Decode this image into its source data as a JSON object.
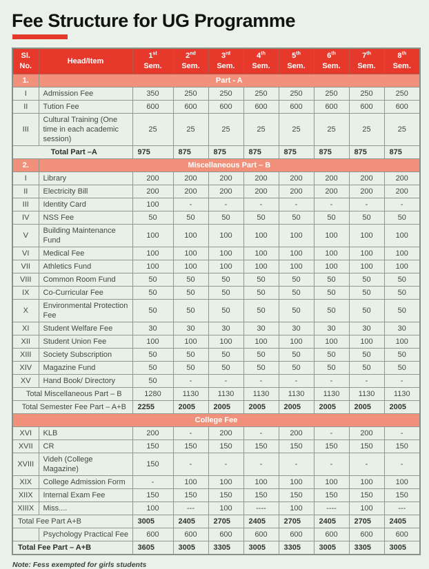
{
  "page": {
    "title": "Fee Structure for UG Programme",
    "note": "Note: Fess exempted for girls students"
  },
  "colors": {
    "header_red": "#e6392c",
    "banner_salmon": "#f2917b",
    "page_background": "#e9f1ea",
    "cell_background": "#e8f0e7",
    "cell_text": "#434842",
    "border_gray": "#8f978f",
    "header_text": "#ffffff"
  },
  "table": {
    "header": {
      "sl_lines": [
        "Sl.",
        "No."
      ],
      "item": "Head/Item",
      "sem_suffix": "Sem.",
      "sems": [
        {
          "n": "1",
          "sup": "st"
        },
        {
          "n": "2",
          "sup": "nd"
        },
        {
          "n": "3",
          "sup": "rd"
        },
        {
          "n": "4",
          "sup": "th"
        },
        {
          "n": "5",
          "sup": "th"
        },
        {
          "n": "6",
          "sup": "th"
        },
        {
          "n": "7",
          "sup": "th"
        },
        {
          "n": "8",
          "sup": "th"
        }
      ]
    },
    "rows": [
      {
        "type": "banner",
        "sl": "1.",
        "label": "Part - A"
      },
      {
        "type": "data",
        "sl": "I",
        "label": "Admission Fee",
        "values": [
          "350",
          "250",
          "250",
          "250",
          "250",
          "250",
          "250",
          "250"
        ]
      },
      {
        "type": "data",
        "sl": "II",
        "label": "Tution Fee",
        "values": [
          "600",
          "600",
          "600",
          "600",
          "600",
          "600",
          "600",
          "600"
        ]
      },
      {
        "type": "data",
        "sl": "III",
        "label": "Cultural Training (One time in each academic session)",
        "values": [
          "25",
          "25",
          "25",
          "25",
          "25",
          "25",
          "25",
          "25"
        ]
      },
      {
        "type": "total",
        "label": "Total Part –A",
        "label_bold": true,
        "label_align": "center",
        "values_bold": true,
        "values": [
          "975",
          "875",
          "875",
          "875",
          "875",
          "875",
          "875",
          "875"
        ]
      },
      {
        "type": "banner",
        "sl": "2.",
        "label": "Miscellaneous Part – B"
      },
      {
        "type": "data",
        "sl": "I",
        "label": "Library",
        "values": [
          "200",
          "200",
          "200",
          "200",
          "200",
          "200",
          "200",
          "200"
        ]
      },
      {
        "type": "data",
        "sl": "II",
        "label": "Electricity Bill",
        "values": [
          "200",
          "200",
          "200",
          "200",
          "200",
          "200",
          "200",
          "200"
        ]
      },
      {
        "type": "data",
        "sl": "III",
        "label": "Identity Card",
        "values": [
          "100",
          "-",
          "-",
          "-",
          "-",
          "-",
          "-",
          "-"
        ]
      },
      {
        "type": "data",
        "sl": "IV",
        "label": "NSS Fee",
        "values": [
          "50",
          "50",
          "50",
          "50",
          "50",
          "50",
          "50",
          "50"
        ]
      },
      {
        "type": "data",
        "sl": "V",
        "label": "Building Maintenance Fund",
        "values": [
          "100",
          "100",
          "100",
          "100",
          "100",
          "100",
          "100",
          "100"
        ]
      },
      {
        "type": "data",
        "sl": "VI",
        "label": "Medical Fee",
        "values": [
          "100",
          "100",
          "100",
          "100",
          "100",
          "100",
          "100",
          "100"
        ]
      },
      {
        "type": "data",
        "sl": "VII",
        "label": "Athletics Fund",
        "values": [
          "100",
          "100",
          "100",
          "100",
          "100",
          "100",
          "100",
          "100"
        ]
      },
      {
        "type": "data",
        "sl": "VIII",
        "label": "Common Room Fund",
        "values": [
          "50",
          "50",
          "50",
          "50",
          "50",
          "50",
          "50",
          "50"
        ]
      },
      {
        "type": "data",
        "sl": "IX",
        "label": "Co-Curricular Fee",
        "values": [
          "50",
          "50",
          "50",
          "50",
          "50",
          "50",
          "50",
          "50"
        ]
      },
      {
        "type": "data",
        "sl": "X",
        "label": "Environmental Protection Fee",
        "values": [
          "50",
          "50",
          "50",
          "50",
          "50",
          "50",
          "50",
          "50"
        ]
      },
      {
        "type": "data",
        "sl": "XI",
        "label": "Student Welfare Fee",
        "values": [
          "30",
          "30",
          "30",
          "30",
          "30",
          "30",
          "30",
          "30"
        ]
      },
      {
        "type": "data",
        "sl": "XII",
        "label": "Student Union Fee",
        "values": [
          "100",
          "100",
          "100",
          "100",
          "100",
          "100",
          "100",
          "100"
        ]
      },
      {
        "type": "data",
        "sl": "XIII",
        "label": "Society Subscription",
        "values": [
          "50",
          "50",
          "50",
          "50",
          "50",
          "50",
          "50",
          "50"
        ]
      },
      {
        "type": "data",
        "sl": "XIV",
        "label": "Magazine Fund",
        "values": [
          "50",
          "50",
          "50",
          "50",
          "50",
          "50",
          "50",
          "50"
        ]
      },
      {
        "type": "data",
        "sl": "XV",
        "label": "Hand Book/ Directory",
        "values": [
          "50",
          "-",
          "-",
          "-",
          "-",
          "-",
          "-",
          "-"
        ]
      },
      {
        "type": "total",
        "label": "Total Miscellaneous Part – B",
        "label_bold": false,
        "label_align": "center",
        "values_bold": false,
        "values": [
          "1280",
          "1130",
          "1130",
          "1130",
          "1130",
          "1130",
          "1130",
          "1130"
        ]
      },
      {
        "type": "total",
        "label": "Total Semester Fee Part – A+B",
        "label_bold": false,
        "label_align": "center",
        "values_bold": true,
        "values": [
          "2255",
          "2005",
          "2005",
          "2005",
          "2005",
          "2005",
          "2005",
          "2005"
        ]
      },
      {
        "type": "banner",
        "sl": null,
        "label": "College Fee"
      },
      {
        "type": "data",
        "sl": "XVI",
        "label": "KLB",
        "values": [
          "200",
          "-",
          "200",
          "-",
          "200",
          "-",
          "200",
          "-"
        ]
      },
      {
        "type": "data",
        "sl": "XVII",
        "label": "CR",
        "values": [
          "150",
          "150",
          "150",
          "150",
          "150",
          "150",
          "150",
          "150"
        ]
      },
      {
        "type": "data",
        "sl": "XVIII",
        "label": "Videh (College Magazine)",
        "values": [
          "150",
          "-",
          "-",
          "-",
          "-",
          "-",
          "-",
          "-"
        ]
      },
      {
        "type": "data",
        "sl": "XIX",
        "label": "College Admission Form",
        "values": [
          "-",
          "100",
          "100",
          "100",
          "100",
          "100",
          "100",
          "100"
        ]
      },
      {
        "type": "data",
        "sl": "XIIX",
        "label": "Internal Exam Fee",
        "values": [
          "150",
          "150",
          "150",
          "150",
          "150",
          "150",
          "150",
          "150"
        ]
      },
      {
        "type": "data",
        "sl": "XIIIX",
        "label": "Miss....",
        "values": [
          "100",
          "---",
          "100",
          "----",
          "100",
          "----",
          "100",
          "---"
        ]
      },
      {
        "type": "total",
        "label": "Total Fee Part A+B",
        "label_bold": false,
        "label_align": "left",
        "values_bold": true,
        "values": [
          "3005",
          "2405",
          "2705",
          "2405",
          "2705",
          "2405",
          "2705",
          "2405"
        ]
      },
      {
        "type": "data",
        "sl": "",
        "label": "Psychology Practical Fee",
        "values": [
          "600",
          "600",
          "600",
          "600",
          "600",
          "600",
          "600",
          "600"
        ]
      },
      {
        "type": "total",
        "label": "Total Fee Part – A+B",
        "label_bold": true,
        "label_align": "left",
        "values_bold": true,
        "values": [
          "3605",
          "3005",
          "3305",
          "3005",
          "3305",
          "3005",
          "3305",
          "3005"
        ]
      }
    ]
  }
}
